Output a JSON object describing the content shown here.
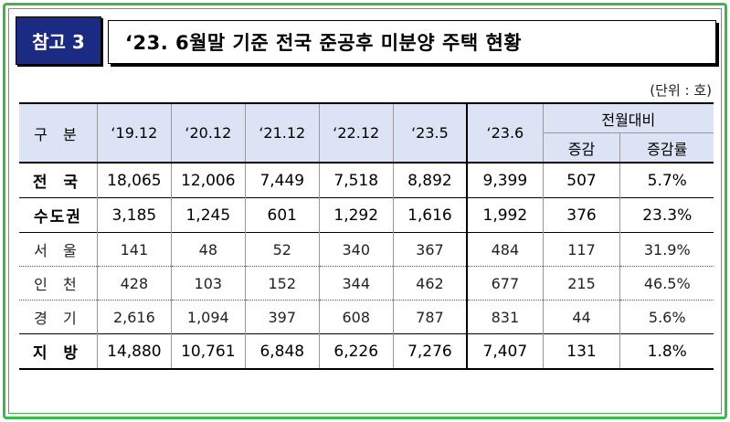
{
  "badge": "참고 3",
  "title": "‘23. 6월말 기준 전국 준공후 미분양 주택 현황",
  "unit": "(단위 : 호)",
  "header": {
    "category": "구 분",
    "periods": [
      "‘19.12",
      "‘20.12",
      "‘21.12",
      "‘22.12",
      "‘23.5",
      "‘23.6"
    ],
    "compare": "전월대비",
    "change": "증감",
    "rate": "증감률"
  },
  "rows": [
    {
      "label": "전 국",
      "values": [
        "18,065",
        "12,006",
        "7,449",
        "7,518",
        "8,892",
        "9,399",
        "507",
        "5.7%"
      ]
    },
    {
      "label": "수도권",
      "values": [
        "3,185",
        "1,245",
        "601",
        "1,292",
        "1,616",
        "1,992",
        "376",
        "23.3%"
      ]
    },
    {
      "label": "서 울",
      "values": [
        "141",
        "48",
        "52",
        "340",
        "367",
        "484",
        "117",
        "31.9%"
      ]
    },
    {
      "label": "인 천",
      "values": [
        "428",
        "103",
        "152",
        "344",
        "462",
        "677",
        "215",
        "46.5%"
      ]
    },
    {
      "label": "경 기",
      "values": [
        "2,616",
        "1,094",
        "397",
        "608",
        "787",
        "831",
        "44",
        "5.6%"
      ]
    },
    {
      "label": "지 방",
      "values": [
        "14,880",
        "10,761",
        "6,848",
        "6,226",
        "7,276",
        "7,407",
        "131",
        "1.8%"
      ]
    }
  ],
  "colors": {
    "badge_bg": "#1b2a83",
    "frame": "#3fb84a",
    "header_bg": "#dce3f4"
  }
}
